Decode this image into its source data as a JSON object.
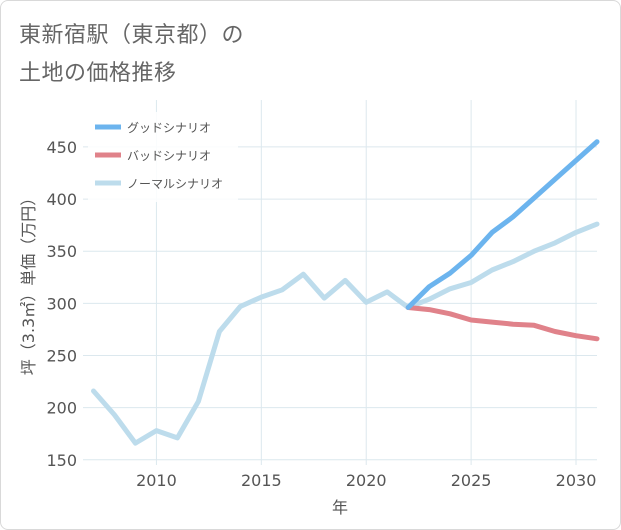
{
  "title_lines": [
    "東新宿駅（東京都）の",
    "土地の価格推移"
  ],
  "chart_data": {
    "type": "line",
    "title": "東新宿駅（東京都）の土地の価格推移",
    "xlabel": "年",
    "ylabel": "坪（3.3㎡）単価（万円）",
    "xlim": [
      2006.5,
      2031
    ],
    "ylim": [
      145,
      495
    ],
    "x_ticks": [
      2010,
      2015,
      2020,
      2025,
      2030
    ],
    "y_ticks": [
      150,
      200,
      250,
      300,
      350,
      400,
      450
    ],
    "grid": true,
    "legend_position": "top-left",
    "series": [
      {
        "name": "グッドシナリオ",
        "color": "#6cb4ee",
        "x": [
          2022,
          2023,
          2024,
          2025,
          2026,
          2027,
          2028,
          2029,
          2030,
          2031
        ],
        "values": [
          296,
          316,
          329,
          346,
          368,
          383,
          401,
          419,
          437,
          455
        ]
      },
      {
        "name": "バッドシナリオ",
        "color": "#e0828a",
        "x": [
          2022,
          2023,
          2024,
          2025,
          2026,
          2027,
          2028,
          2029,
          2030,
          2031
        ],
        "values": [
          296,
          294,
          290,
          284,
          282,
          280,
          279,
          273,
          269,
          266
        ]
      },
      {
        "name": "ノーマルシナリオ",
        "color": "#bddcec",
        "x": [
          2007,
          2008,
          2009,
          2010,
          2011,
          2012,
          2013,
          2014,
          2015,
          2016,
          2017,
          2018,
          2019,
          2020,
          2021,
          2022,
          2023,
          2024,
          2025,
          2026,
          2027,
          2028,
          2029,
          2030,
          2031
        ],
        "values": [
          216,
          193,
          166,
          178,
          171,
          206,
          273,
          297,
          306,
          313,
          328,
          305,
          322,
          301,
          311,
          296,
          304,
          314,
          320,
          332,
          340,
          350,
          358,
          368,
          376
        ]
      }
    ]
  }
}
